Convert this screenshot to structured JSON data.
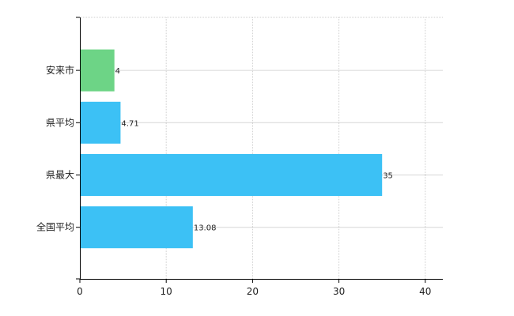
{
  "chart_data": {
    "type": "bar",
    "orientation": "horizontal",
    "categories": [
      "安来市",
      "県平均",
      "県最大",
      "全国平均"
    ],
    "values": [
      4,
      4.71,
      35,
      13.08
    ],
    "data_labels": [
      "4",
      "4.71",
      "35",
      "13.08"
    ],
    "bar_colors": [
      "#6dd486",
      "#3cc1f5",
      "#3cc1f5",
      "#3cc1f5"
    ],
    "xlim": [
      0,
      42
    ],
    "x_ticks": [
      0,
      10,
      20,
      30,
      40
    ],
    "grid": true,
    "legend": "none",
    "title": "",
    "xlabel": "",
    "ylabel": ""
  }
}
